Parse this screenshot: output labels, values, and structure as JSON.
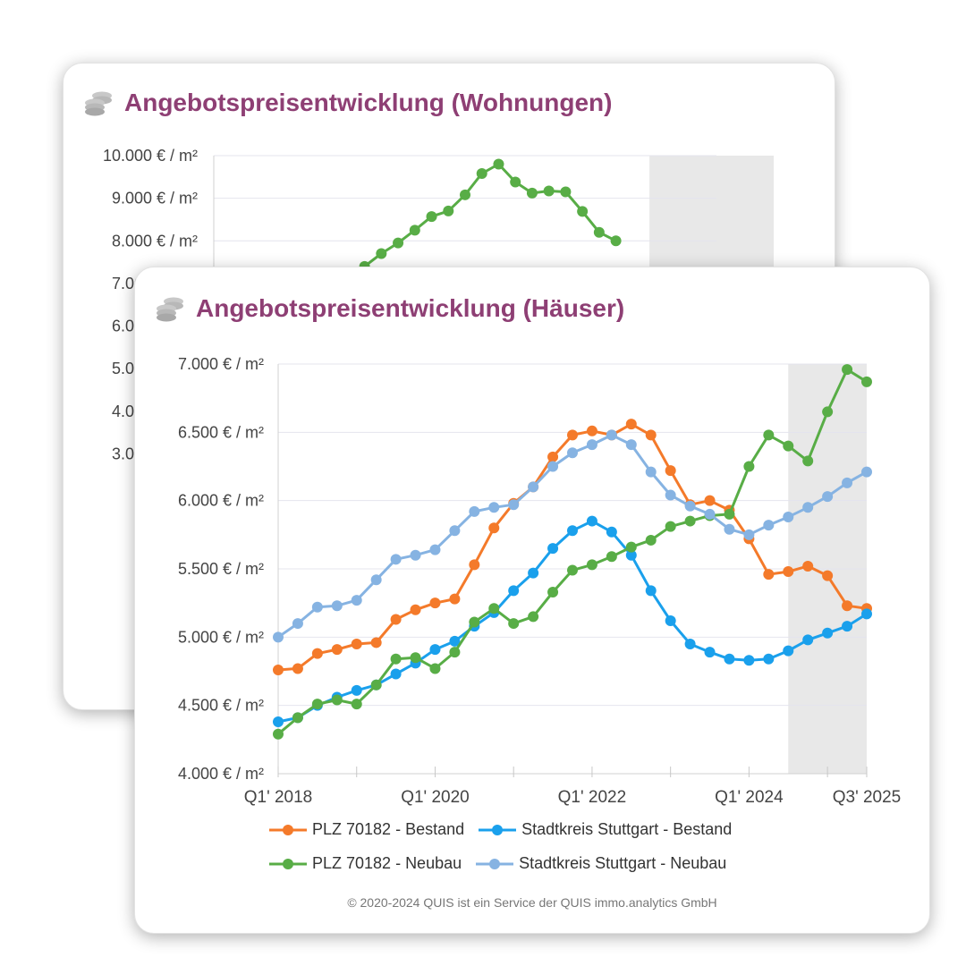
{
  "back_card": {
    "title": "Angebotspreisentwicklung (Wohnungen)"
  },
  "front_card": {
    "title": "Angebotspreisentwicklung (Häuser)",
    "copyright": "© 2020-2024 QUIS ist ein Service der QUIS immo.analytics GmbH"
  },
  "colors": {
    "title": "#8e3f74",
    "orange": "#f47a2a",
    "blue": "#1aa0ec",
    "green": "#58ad46",
    "lightblue": "#86b3e2",
    "forecast_band": "#e8e8e8"
  },
  "icons": [
    "coins-icon"
  ],
  "chart_data": [
    {
      "type": "line",
      "y_tick_labels": [
        "10.000 € / m²",
        "9.000 € / m²",
        "8.000 € / m²",
        "7.000 € / m²",
        "6.000 € / m²",
        "5.000 € / m²",
        "4.000 € / m²",
        "3.000 € / m²"
      ],
      "y_ticks": [
        10000,
        9000,
        8000,
        7000,
        6000,
        5000,
        4000,
        3000
      ],
      "ylim": [
        2000,
        10000
      ],
      "x": [
        "Q1 2018",
        "Q2 2018",
        "Q3 2018",
        "Q4 2018",
        "Q1 2019",
        "Q2 2019",
        "Q3 2019",
        "Q4 2019",
        "Q1 2020",
        "Q2 2020",
        "Q3 2020",
        "Q4 2020",
        "Q1 2021",
        "Q2 2021",
        "Q3 2021",
        "Q4 2021",
        "Q1 2022",
        "Q2 2022",
        "Q3 2022",
        "Q4 2022",
        "Q1 2023",
        "Q2 2023",
        "Q3 2023",
        "Q4 2023",
        "Q1 2024",
        "Q2 2024",
        "Q3 2024",
        "Q4 2024",
        "Q1 2025",
        "Q2 2025",
        "Q3 2025"
      ],
      "forecast_from": "Q3 2024",
      "grid": true,
      "series": [
        {
          "color_key": "green",
          "values": [
            null,
            null,
            null,
            null,
            null,
            null,
            null,
            null,
            null,
            7400,
            7700,
            7950,
            8250,
            8570,
            8700,
            9080,
            9580,
            9800,
            9380,
            9120,
            9170,
            9150,
            8690,
            8200,
            8000,
            null,
            null,
            null,
            null,
            null,
            null
          ]
        }
      ]
    },
    {
      "type": "line",
      "y_tick_labels": [
        "7.000 € / m²",
        "6.500 € / m²",
        "6.000 € / m²",
        "5.500 € / m²",
        "5.000 € / m²",
        "4.500 € / m²",
        "4.000 € / m²"
      ],
      "y_ticks": [
        7000,
        6500,
        6000,
        5500,
        5000,
        4500,
        4000
      ],
      "ylim": [
        4000,
        7000
      ],
      "x_tick_labels": [
        "Q1' 2018",
        "Q1' 2020",
        "Q1' 2022",
        "Q1' 2024",
        "Q3' 2025"
      ],
      "x_tick_positions": [
        0,
        8,
        16,
        24,
        30
      ],
      "x": [
        "Q1 2018",
        "Q2 2018",
        "Q3 2018",
        "Q4 2018",
        "Q1 2019",
        "Q2 2019",
        "Q3 2019",
        "Q4 2019",
        "Q1 2020",
        "Q2 2020",
        "Q3 2020",
        "Q4 2020",
        "Q1 2021",
        "Q2 2021",
        "Q3 2021",
        "Q4 2021",
        "Q1 2022",
        "Q2 2022",
        "Q3 2022",
        "Q4 2022",
        "Q1 2023",
        "Q2 2023",
        "Q3 2023",
        "Q4 2023",
        "Q1 2024",
        "Q2 2024",
        "Q3 2024",
        "Q4 2024",
        "Q1 2025",
        "Q2 2025",
        "Q3 2025"
      ],
      "forecast_from": "Q3 2024",
      "grid": true,
      "legend_position": "bottom",
      "series": [
        {
          "name": "PLZ 70182 - Bestand",
          "color_key": "orange",
          "values": [
            4760,
            4770,
            4880,
            4910,
            4950,
            4960,
            5130,
            5200,
            5250,
            5280,
            5530,
            5800,
            5980,
            6100,
            6320,
            6480,
            6510,
            6480,
            6560,
            6480,
            6220,
            5970,
            6000,
            5930,
            5720,
            5460,
            5480,
            5520,
            5450,
            5230,
            5210
          ]
        },
        {
          "name": "Stadtkreis Stuttgart - Bestand",
          "color_key": "blue",
          "values": [
            4380,
            4410,
            4500,
            4560,
            4610,
            4650,
            4730,
            4810,
            4910,
            4970,
            5080,
            5180,
            5340,
            5470,
            5650,
            5780,
            5850,
            5770,
            5600,
            5340,
            5120,
            4950,
            4890,
            4840,
            4830,
            4840,
            4900,
            4980,
            5030,
            5080,
            5170
          ]
        },
        {
          "name": "PLZ 70182 - Neubau",
          "color_key": "green",
          "values": [
            4290,
            4410,
            4510,
            4540,
            4510,
            4650,
            4840,
            4850,
            4770,
            4890,
            5110,
            5210,
            5100,
            5150,
            5330,
            5490,
            5530,
            5590,
            5660,
            5710,
            5810,
            5850,
            5890,
            5900,
            6250,
            6480,
            6400,
            6290,
            6650,
            6960,
            6870
          ]
        },
        {
          "name": "Stadtkreis Stuttgart - Neubau",
          "color_key": "lightblue",
          "values": [
            5000,
            5100,
            5220,
            5230,
            5270,
            5420,
            5570,
            5600,
            5640,
            5780,
            5920,
            5950,
            5970,
            6100,
            6250,
            6350,
            6410,
            6480,
            6410,
            6210,
            6040,
            5960,
            5900,
            5790,
            5750,
            5820,
            5880,
            5950,
            6030,
            6130,
            6210
          ]
        }
      ]
    }
  ]
}
